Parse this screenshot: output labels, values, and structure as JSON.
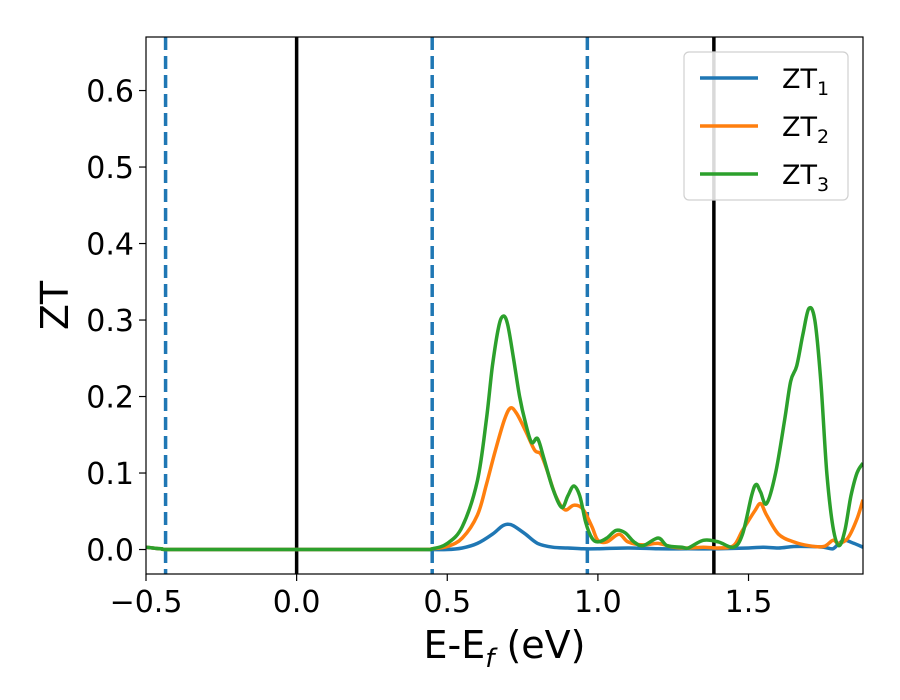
{
  "chart_data": {
    "type": "line",
    "xlabel": "E-E",
    "xlabel_sub": "f",
    "xlabel_unit": " (eV)",
    "ylabel": "ZT",
    "xlim": [
      -0.5,
      1.88
    ],
    "ylim": [
      -0.032,
      0.67
    ],
    "xticks": [
      -0.5,
      0.0,
      0.5,
      1.0,
      1.5
    ],
    "xtick_labels": [
      "−0.5",
      "0.0",
      "0.5",
      "1.0",
      "1.5"
    ],
    "yticks": [
      0.0,
      0.1,
      0.2,
      0.3,
      0.4,
      0.5,
      0.6
    ],
    "ytick_labels": [
      "0.0",
      "0.1",
      "0.2",
      "0.3",
      "0.4",
      "0.5",
      "0.6"
    ],
    "grid": false,
    "legend_position": "top-right",
    "vlines": [
      {
        "x": -0.435,
        "style": "dashed",
        "color": "#1f77b4"
      },
      {
        "x": 0.0,
        "style": "solid",
        "color": "#000000"
      },
      {
        "x": 0.45,
        "style": "dashed",
        "color": "#1f77b4"
      },
      {
        "x": 0.965,
        "style": "dashed",
        "color": "#1f77b4"
      },
      {
        "x": 1.385,
        "style": "solid",
        "color": "#000000"
      }
    ],
    "series": [
      {
        "name": "ZT",
        "name_sub": "1",
        "color": "#1f77b4",
        "points": [
          [
            -0.5,
            0.003
          ],
          [
            -0.45,
            0.001
          ],
          [
            -0.4,
            0.0
          ],
          [
            0.0,
            0.0
          ],
          [
            0.4,
            0.0
          ],
          [
            0.5,
            0.0
          ],
          [
            0.55,
            0.002
          ],
          [
            0.6,
            0.008
          ],
          [
            0.65,
            0.02
          ],
          [
            0.68,
            0.03
          ],
          [
            0.7,
            0.033
          ],
          [
            0.72,
            0.031
          ],
          [
            0.76,
            0.02
          ],
          [
            0.8,
            0.008
          ],
          [
            0.85,
            0.003
          ],
          [
            0.9,
            0.002
          ],
          [
            0.95,
            0.001
          ],
          [
            1.0,
            0.001
          ],
          [
            1.1,
            0.002
          ],
          [
            1.2,
            0.001
          ],
          [
            1.3,
            0.001
          ],
          [
            1.4,
            0.001
          ],
          [
            1.5,
            0.002
          ],
          [
            1.55,
            0.003
          ],
          [
            1.6,
            0.002
          ],
          [
            1.65,
            0.004
          ],
          [
            1.7,
            0.004
          ],
          [
            1.75,
            0.003
          ],
          [
            1.78,
            0.001
          ],
          [
            1.8,
            0.008
          ],
          [
            1.82,
            0.012
          ],
          [
            1.85,
            0.008
          ],
          [
            1.88,
            0.003
          ]
        ]
      },
      {
        "name": "ZT",
        "name_sub": "2",
        "color": "#ff7f0e",
        "points": [
          [
            -0.5,
            0.003
          ],
          [
            -0.45,
            0.001
          ],
          [
            -0.4,
            0.0
          ],
          [
            0.0,
            0.0
          ],
          [
            0.4,
            0.0
          ],
          [
            0.45,
            0.001
          ],
          [
            0.5,
            0.004
          ],
          [
            0.55,
            0.015
          ],
          [
            0.6,
            0.045
          ],
          [
            0.63,
            0.085
          ],
          [
            0.66,
            0.13
          ],
          [
            0.69,
            0.17
          ],
          [
            0.71,
            0.185
          ],
          [
            0.73,
            0.178
          ],
          [
            0.76,
            0.155
          ],
          [
            0.79,
            0.13
          ],
          [
            0.81,
            0.125
          ],
          [
            0.83,
            0.105
          ],
          [
            0.86,
            0.07
          ],
          [
            0.89,
            0.052
          ],
          [
            0.92,
            0.058
          ],
          [
            0.95,
            0.053
          ],
          [
            0.98,
            0.03
          ],
          [
            1.0,
            0.012
          ],
          [
            1.03,
            0.01
          ],
          [
            1.07,
            0.02
          ],
          [
            1.1,
            0.01
          ],
          [
            1.15,
            0.006
          ],
          [
            1.2,
            0.008
          ],
          [
            1.25,
            0.003
          ],
          [
            1.3,
            0.002
          ],
          [
            1.35,
            0.003
          ],
          [
            1.4,
            0.002
          ],
          [
            1.45,
            0.005
          ],
          [
            1.48,
            0.025
          ],
          [
            1.52,
            0.05
          ],
          [
            1.54,
            0.06
          ],
          [
            1.56,
            0.045
          ],
          [
            1.6,
            0.02
          ],
          [
            1.65,
            0.01
          ],
          [
            1.7,
            0.005
          ],
          [
            1.75,
            0.004
          ],
          [
            1.78,
            0.012
          ],
          [
            1.8,
            0.008
          ],
          [
            1.83,
            0.015
          ],
          [
            1.86,
            0.04
          ],
          [
            1.88,
            0.065
          ]
        ]
      },
      {
        "name": "ZT",
        "name_sub": "3",
        "color": "#2ca02c",
        "points": [
          [
            -0.5,
            0.003
          ],
          [
            -0.45,
            0.001
          ],
          [
            -0.4,
            0.0
          ],
          [
            0.0,
            0.0
          ],
          [
            0.4,
            0.0
          ],
          [
            0.45,
            0.001
          ],
          [
            0.5,
            0.008
          ],
          [
            0.55,
            0.03
          ],
          [
            0.6,
            0.09
          ],
          [
            0.63,
            0.17
          ],
          [
            0.65,
            0.24
          ],
          [
            0.67,
            0.29
          ],
          [
            0.685,
            0.305
          ],
          [
            0.7,
            0.295
          ],
          [
            0.72,
            0.25
          ],
          [
            0.74,
            0.2
          ],
          [
            0.76,
            0.165
          ],
          [
            0.78,
            0.14
          ],
          [
            0.8,
            0.145
          ],
          [
            0.82,
            0.12
          ],
          [
            0.85,
            0.08
          ],
          [
            0.88,
            0.055
          ],
          [
            0.9,
            0.07
          ],
          [
            0.92,
            0.083
          ],
          [
            0.94,
            0.07
          ],
          [
            0.96,
            0.035
          ],
          [
            0.98,
            0.015
          ],
          [
            1.0,
            0.01
          ],
          [
            1.03,
            0.015
          ],
          [
            1.06,
            0.025
          ],
          [
            1.09,
            0.022
          ],
          [
            1.12,
            0.01
          ],
          [
            1.15,
            0.005
          ],
          [
            1.2,
            0.015
          ],
          [
            1.23,
            0.005
          ],
          [
            1.28,
            0.003
          ],
          [
            1.3,
            0.002
          ],
          [
            1.35,
            0.012
          ],
          [
            1.4,
            0.01
          ],
          [
            1.45,
            0.003
          ],
          [
            1.48,
            0.02
          ],
          [
            1.51,
            0.07
          ],
          [
            1.525,
            0.085
          ],
          [
            1.54,
            0.075
          ],
          [
            1.56,
            0.06
          ],
          [
            1.59,
            0.1
          ],
          [
            1.62,
            0.17
          ],
          [
            1.64,
            0.22
          ],
          [
            1.66,
            0.24
          ],
          [
            1.68,
            0.28
          ],
          [
            1.7,
            0.315
          ],
          [
            1.72,
            0.3
          ],
          [
            1.74,
            0.22
          ],
          [
            1.76,
            0.1
          ],
          [
            1.78,
            0.03
          ],
          [
            1.8,
            0.005
          ],
          [
            1.82,
            0.025
          ],
          [
            1.84,
            0.07
          ],
          [
            1.86,
            0.1
          ],
          [
            1.88,
            0.113
          ]
        ]
      }
    ]
  }
}
